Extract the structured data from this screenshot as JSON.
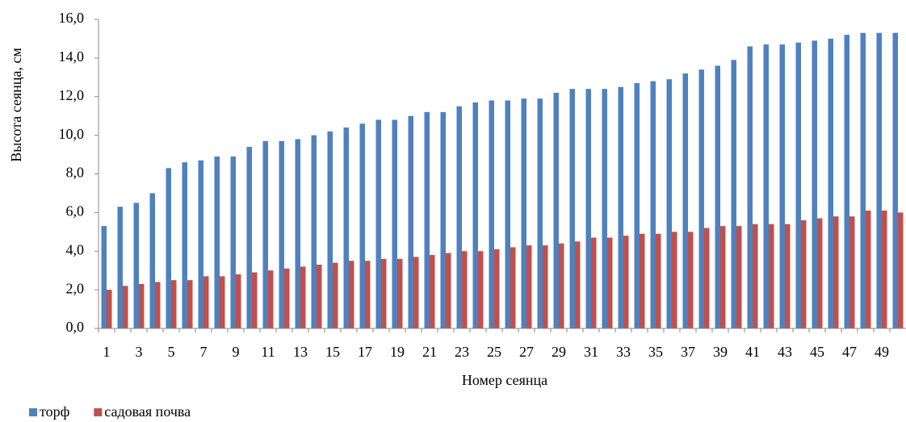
{
  "chart_data": {
    "type": "bar",
    "y_label": "Высота сеянца, см",
    "x_label": "Номер сеянца",
    "categories": [
      "1",
      null,
      "3",
      null,
      "5",
      null,
      "7",
      null,
      "9",
      null,
      "11",
      null,
      "13",
      null,
      "15",
      null,
      "17",
      null,
      "19",
      null,
      "21",
      null,
      "23",
      null,
      "25",
      null,
      "27",
      null,
      "29",
      null,
      "31",
      null,
      "33",
      null,
      "35",
      null,
      "37",
      null,
      "39",
      null,
      "41",
      null,
      "43",
      null,
      "45",
      null,
      "47",
      null,
      "49",
      null
    ],
    "series": [
      {
        "name": "торф",
        "color": "#4f81bd",
        "values": [
          5.3,
          6.3,
          6.5,
          7.0,
          8.3,
          8.6,
          8.7,
          8.9,
          8.9,
          9.4,
          9.7,
          9.7,
          9.8,
          10.0,
          10.2,
          10.4,
          10.6,
          10.8,
          10.8,
          11.0,
          11.2,
          11.2,
          11.5,
          11.7,
          11.8,
          11.8,
          11.9,
          11.9,
          12.2,
          12.4,
          12.4,
          12.4,
          12.5,
          12.7,
          12.8,
          12.9,
          13.2,
          13.4,
          13.6,
          13.9,
          14.6,
          14.7,
          14.7,
          14.8,
          14.9,
          15.0,
          15.2,
          15.3,
          15.3,
          15.3
        ]
      },
      {
        "name": "садовая почва",
        "color": "#c0504d",
        "values": [
          2.0,
          2.2,
          2.3,
          2.4,
          2.5,
          2.5,
          2.7,
          2.7,
          2.8,
          2.9,
          3.0,
          3.1,
          3.2,
          3.3,
          3.4,
          3.5,
          3.5,
          3.6,
          3.6,
          3.7,
          3.8,
          3.9,
          4.0,
          4.0,
          4.1,
          4.2,
          4.3,
          4.3,
          4.4,
          4.5,
          4.7,
          4.7,
          4.8,
          4.9,
          4.9,
          5.0,
          5.0,
          5.2,
          5.3,
          5.3,
          5.4,
          5.4,
          5.4,
          5.6,
          5.7,
          5.8,
          5.8,
          6.1,
          6.1,
          6.0
        ]
      }
    ],
    "ylim": [
      0,
      16
    ],
    "yticks": [
      {
        "value": 0,
        "label": "0,0"
      },
      {
        "value": 2,
        "label": "2,0"
      },
      {
        "value": 4,
        "label": "4,0"
      },
      {
        "value": 6,
        "label": "6,0"
      },
      {
        "value": 8,
        "label": "8,0"
      },
      {
        "value": 10,
        "label": "10,0"
      },
      {
        "value": 12,
        "label": "12,0"
      },
      {
        "value": 14,
        "label": "14,0"
      },
      {
        "value": 16,
        "label": "16,0"
      }
    ],
    "legend": "bottom-left"
  }
}
